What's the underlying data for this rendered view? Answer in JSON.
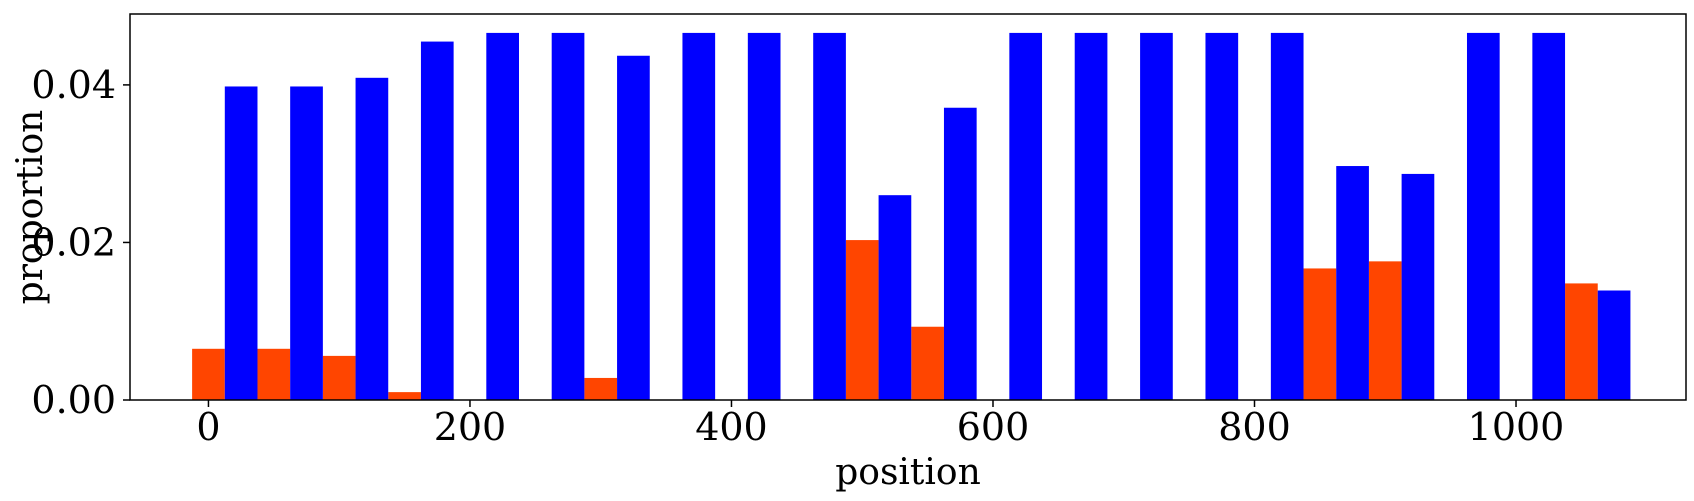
{
  "chart_data": {
    "type": "bar",
    "title": "",
    "xlabel": "position",
    "ylabel": "proportion",
    "xlim": [
      -60,
      1130
    ],
    "ylim": [
      0,
      0.049
    ],
    "xticks": [
      0,
      200,
      400,
      600,
      800,
      1000
    ],
    "xtick_labels": [
      "0",
      "200",
      "400",
      "600",
      "800",
      "1000"
    ],
    "yticks": [
      0.0,
      0.02,
      0.04
    ],
    "ytick_labels": [
      "0.00",
      "0.02",
      "0.04"
    ],
    "bar_width": 25,
    "grid": false,
    "legend": "none",
    "series": [
      {
        "color": "#ff4500",
        "x": [
          0,
          50,
          100,
          150,
          200,
          250,
          300,
          350,
          400,
          450,
          500,
          550,
          600,
          650,
          700,
          750,
          800,
          850,
          900,
          950,
          1000,
          1050
        ],
        "values": [
          0.0065,
          0.0065,
          0.0056,
          0.001,
          0.0,
          0.0,
          0.0028,
          0.0,
          0.0,
          0.0,
          0.0203,
          0.0093,
          0.0,
          0.0,
          0.0,
          0.0,
          0.0,
          0.0167,
          0.0176,
          0.0,
          0.0,
          0.0148
        ]
      },
      {
        "color": "#0000ff",
        "x": [
          25,
          75,
          125,
          175,
          225,
          275,
          325,
          375,
          425,
          475,
          525,
          575,
          625,
          675,
          725,
          775,
          825,
          875,
          925,
          975,
          1025,
          1075
        ],
        "values": [
          0.0398,
          0.0398,
          0.0409,
          0.0455,
          0.0466,
          0.0466,
          0.0437,
          0.0466,
          0.0466,
          0.0466,
          0.026,
          0.0371,
          0.0466,
          0.0466,
          0.0466,
          0.0466,
          0.0466,
          0.0297,
          0.0287,
          0.0466,
          0.0466,
          0.0139
        ]
      }
    ]
  }
}
